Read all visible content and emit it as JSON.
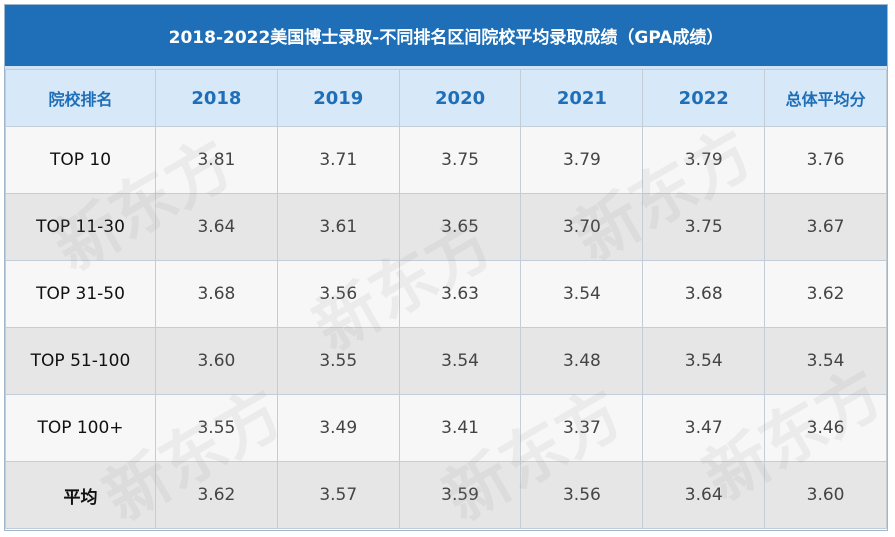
{
  "title": "2018-2022美国博士录取-不同排名区间院校平均录取成绩（GPA成绩）",
  "headers": [
    "院校排名",
    "2018",
    "2019",
    "2020",
    "2021",
    "2022",
    "总体平均分"
  ],
  "rows": [
    {
      "rank": "TOP 10",
      "values": [
        "3.81",
        "3.71",
        "3.75",
        "3.79",
        "3.79",
        "3.76"
      ]
    },
    {
      "rank": "TOP 11-30",
      "values": [
        "3.64",
        "3.61",
        "3.65",
        "3.70",
        "3.75",
        "3.67"
      ]
    },
    {
      "rank": "TOP 31-50",
      "values": [
        "3.68",
        "3.56",
        "3.63",
        "3.54",
        "3.68",
        "3.62"
      ]
    },
    {
      "rank": "TOP 51-100",
      "values": [
        "3.60",
        "3.55",
        "3.54",
        "3.48",
        "3.54",
        "3.54"
      ]
    },
    {
      "rank": "TOP 100+",
      "values": [
        "3.55",
        "3.49",
        "3.41",
        "3.37",
        "3.47",
        "3.46"
      ]
    },
    {
      "rank": "平均",
      "values": [
        "3.62",
        "3.57",
        "3.59",
        "3.56",
        "3.64",
        "3.60"
      ]
    }
  ],
  "watermark": "新东方",
  "colors": {
    "header_bg": "#1f6fb8",
    "subheader_bg": "#d7e8f8",
    "accent": "#1f6fb8"
  }
}
